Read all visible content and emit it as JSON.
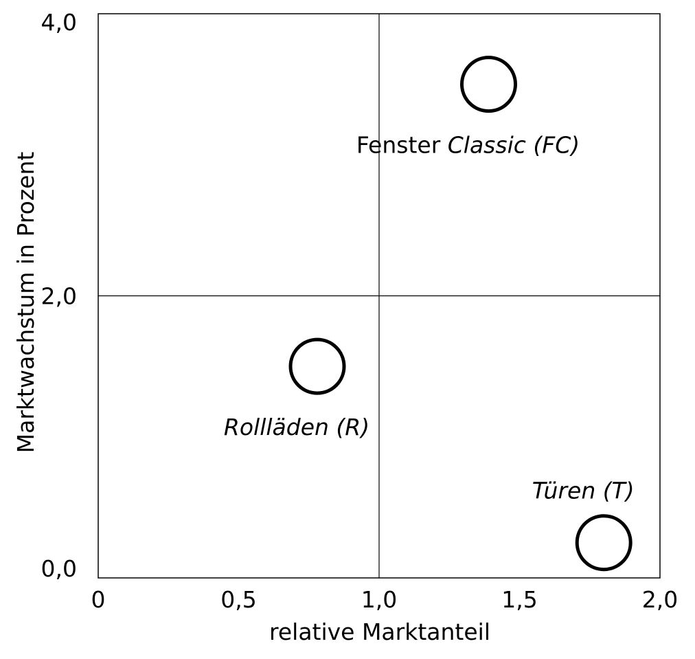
{
  "chart_data": {
    "type": "scatter",
    "title": "",
    "xlabel": "relative Marktanteil",
    "ylabel": "Marktwachstum in Prozent",
    "xlim": [
      0,
      2
    ],
    "ylim": [
      0,
      4
    ],
    "x_ticks": [
      {
        "value": 0,
        "label": "0"
      },
      {
        "value": 0.5,
        "label": "0,5"
      },
      {
        "value": 1.0,
        "label": "1,0"
      },
      {
        "value": 1.5,
        "label": "1,5"
      },
      {
        "value": 2.0,
        "label": "2,0"
      }
    ],
    "y_ticks": [
      {
        "value": 0,
        "label": "0,0"
      },
      {
        "value": 2.0,
        "label": "2,0"
      },
      {
        "value": 4.0,
        "label": "4,0"
      }
    ],
    "divider_x": 1.0,
    "divider_y": 2.0,
    "grid": false,
    "marker": "open-circle",
    "points": [
      {
        "x": 1.39,
        "y": 3.5,
        "label_plain": "Fenster ",
        "label_italic": "Classic (FC)",
        "label_pos": "below"
      },
      {
        "x": 0.78,
        "y": 1.5,
        "label_plain": "",
        "label_italic": "Rollläden (R)",
        "label_pos": "below"
      },
      {
        "x": 1.8,
        "y": 0.25,
        "label_plain": "",
        "label_italic": "Türen (T)",
        "label_pos": "above"
      }
    ]
  }
}
